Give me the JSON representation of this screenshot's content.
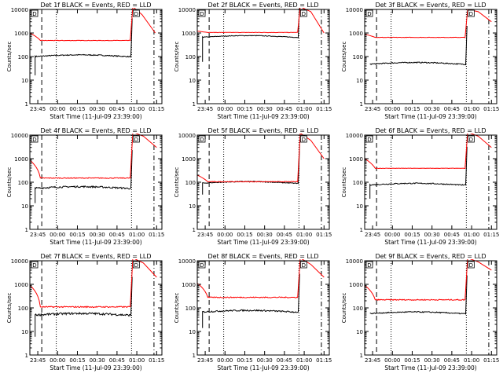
{
  "figure": {
    "ylabel": "Counts/sec",
    "xlabel": "Start Time (11-Jul-09 23:39:00)",
    "x_tick_labels": [
      "23:45",
      "00:00",
      "00:15",
      "00:30",
      "00:45",
      "01:00",
      "01:15"
    ],
    "y_tick_labels": [
      "1",
      "10",
      "100",
      "1000",
      "10000"
    ],
    "marker_labels": [
      "D",
      "D"
    ]
  },
  "chart_data": [
    {
      "type": "line",
      "title": "Det 1f BLACK = Events, RED = LLD",
      "yscale": "log",
      "ylim": [
        1,
        10000
      ],
      "xlabel": "Start Time (11-Jul-09 23:39:00)",
      "ylabel": "Counts/sec",
      "series": [
        {
          "color": "#000000",
          "kind": "events",
          "start": 4,
          "base": 105,
          "drop": 16,
          "tail": [],
          "noise": 0.05
        },
        {
          "color": "#ff0000",
          "kind": "lld",
          "start": 0,
          "base": 480,
          "init": 1000,
          "tail": [
            [
              78,
              13000
            ],
            [
              85,
              6000
            ],
            [
              95,
              1000
            ]
          ],
          "noise": 0.02
        }
      ]
    },
    {
      "type": "line",
      "title": "Det 2f BLACK = Events, RED = LLD",
      "yscale": "log",
      "ylim": [
        1,
        10000
      ],
      "xlabel": "Start Time (11-Jul-09 23:39:00)",
      "ylabel": "Counts/sec",
      "series": [
        {
          "color": "#000000",
          "kind": "events",
          "start": 4,
          "base": 690,
          "drop": 60,
          "tail": [],
          "noise": 0.03
        },
        {
          "color": "#ff0000",
          "kind": "lld",
          "start": 0,
          "base": 1050,
          "init": 1200,
          "tail": [
            [
              78,
              13000
            ],
            [
              86,
              8000
            ],
            [
              96,
              1000
            ]
          ],
          "noise": 0.02
        }
      ]
    },
    {
      "type": "line",
      "title": "Det 3f BLACK = Events, RED = LLD",
      "yscale": "log",
      "ylim": [
        1,
        10000
      ],
      "xlabel": "Start Time (11-Jul-09 23:39:00)",
      "ylabel": "Counts/sec",
      "series": [
        {
          "color": "#000000",
          "kind": "events",
          "start": 4,
          "base": 50,
          "drop": 0,
          "tail": [],
          "noise": 0.05
        },
        {
          "color": "#ff0000",
          "kind": "lld",
          "start": 0,
          "base": 650,
          "init": 900,
          "tail": [
            [
              78,
              10000
            ],
            [
              86,
              8000
            ],
            [
              96,
              3000
            ]
          ],
          "noise": 0.02
        }
      ]
    },
    {
      "type": "line",
      "title": "Det 4f BLACK = Events, RED = LLD",
      "yscale": "log",
      "ylim": [
        1,
        10000
      ],
      "xlabel": "Start Time (11-Jul-09 23:39:00)",
      "ylabel": "Counts/sec",
      "series": [
        {
          "color": "#000000",
          "kind": "events",
          "start": 4,
          "base": 58,
          "drop": 13,
          "tail": [],
          "noise": 0.08
        },
        {
          "color": "#ff0000",
          "kind": "lld",
          "start": 0,
          "base": 150,
          "init": 850,
          "tail": [
            [
              78,
              14000
            ],
            [
              86,
              9000
            ],
            [
              96,
              3000
            ]
          ],
          "noise": 0.04
        }
      ]
    },
    {
      "type": "line",
      "title": "Det 5f BLACK = Events, RED = LLD",
      "yscale": "log",
      "ylim": [
        1,
        10000
      ],
      "xlabel": "Start Time (11-Jul-09 23:39:00)",
      "ylabel": "Counts/sec",
      "series": [
        {
          "color": "#000000",
          "kind": "events",
          "start": 4,
          "base": 95,
          "drop": 30,
          "tail": [],
          "noise": 0.04
        },
        {
          "color": "#ff0000",
          "kind": "lld",
          "start": 0,
          "base": 105,
          "init": 200,
          "tail": [
            [
              78,
              12000
            ],
            [
              86,
              6000
            ],
            [
              96,
              1000
            ]
          ],
          "noise": 0.03
        }
      ]
    },
    {
      "type": "line",
      "title": "Det 6f BLACK = Events, RED = LLD",
      "yscale": "log",
      "ylim": [
        1,
        10000
      ],
      "xlabel": "Start Time (11-Jul-09 23:39:00)",
      "ylabel": "Counts/sec",
      "series": [
        {
          "color": "#000000",
          "kind": "events",
          "start": 4,
          "base": 80,
          "drop": 20,
          "tail": [],
          "noise": 0.05
        },
        {
          "color": "#ff0000",
          "kind": "lld",
          "start": 0,
          "base": 390,
          "init": 1000,
          "tail": [
            [
              78,
              14000
            ],
            [
              86,
              9000
            ],
            [
              96,
              3000
            ]
          ],
          "noise": 0.02
        }
      ]
    },
    {
      "type": "line",
      "title": "Det 7f BLACK = Events, RED = LLD",
      "yscale": "log",
      "ylim": [
        1,
        10000
      ],
      "xlabel": "Start Time (11-Jul-09 23:39:00)",
      "ylabel": "Counts/sec",
      "series": [
        {
          "color": "#000000",
          "kind": "events",
          "start": 4,
          "base": 52,
          "drop": 6,
          "tail": [],
          "noise": 0.1
        },
        {
          "color": "#ff0000",
          "kind": "lld",
          "start": 0,
          "base": 110,
          "init": 900,
          "tail": [
            [
              78,
              14000
            ],
            [
              86,
              8000
            ],
            [
              96,
              2000
            ]
          ],
          "noise": 0.06
        }
      ]
    },
    {
      "type": "line",
      "title": "Det 8f BLACK = Events, RED = LLD",
      "yscale": "log",
      "ylim": [
        1,
        10000
      ],
      "xlabel": "Start Time (11-Jul-09 23:39:00)",
      "ylabel": "Counts/sec",
      "series": [
        {
          "color": "#000000",
          "kind": "events",
          "start": 4,
          "base": 70,
          "drop": 14,
          "tail": [],
          "noise": 0.07
        },
        {
          "color": "#ff0000",
          "kind": "lld",
          "start": 0,
          "base": 280,
          "init": 1100,
          "tail": [
            [
              78,
              14000
            ],
            [
              86,
              7000
            ],
            [
              96,
              2000
            ]
          ],
          "noise": 0.05
        }
      ]
    },
    {
      "type": "line",
      "title": "Det 9f BLACK = Events, RED = LLD",
      "yscale": "log",
      "ylim": [
        1,
        10000
      ],
      "xlabel": "Start Time (11-Jul-09 23:39:00)",
      "ylabel": "Counts/sec",
      "series": [
        {
          "color": "#000000",
          "kind": "events",
          "start": 4,
          "base": 60,
          "drop": 0,
          "tail": [],
          "noise": 0.05
        },
        {
          "color": "#ff0000",
          "kind": "lld",
          "start": 0,
          "base": 220,
          "init": 900,
          "tail": [
            [
              78,
              14000
            ],
            [
              86,
              9000
            ],
            [
              96,
              4000
            ]
          ],
          "noise": 0.05
        }
      ]
    }
  ]
}
